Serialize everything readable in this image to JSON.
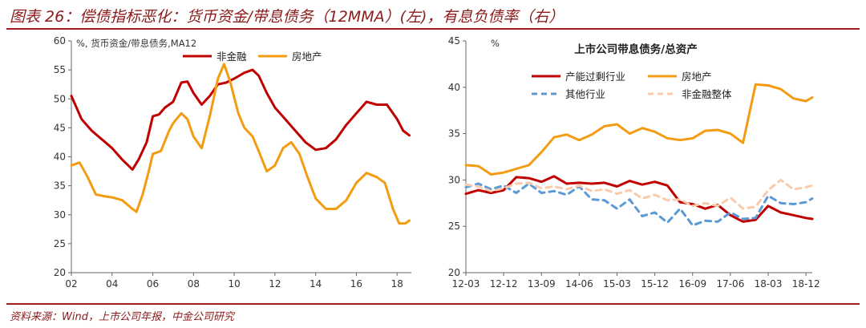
{
  "page": {
    "title": "图表 26：偿债指标恶化：货币资金/带息债务（12MMA）(左)，有息负债率（右）",
    "source": "资料来源：Wind，上市公司年报，中金公司研究"
  },
  "colors": {
    "title": "#8b1a1a",
    "rule": "#a31f1f",
    "dark_red": "#c00000",
    "orange": "#f39c12",
    "blue": "#5b9bd5",
    "peach": "#f8cbad"
  },
  "chart_data": [
    {
      "type": "line",
      "unit_label": "%, 货币资金/带息债务,MA12",
      "ylim": [
        20,
        60
      ],
      "yticks": [
        20,
        25,
        30,
        35,
        40,
        45,
        50,
        55,
        60
      ],
      "xlim": [
        2002,
        2018.7
      ],
      "xticks": [
        2002,
        2004,
        2006,
        2008,
        2010,
        2012,
        2014,
        2016,
        2018
      ],
      "xtick_labels": [
        "02",
        "04",
        "06",
        "08",
        "10",
        "12",
        "14",
        "16",
        "18"
      ],
      "legend": "top-center",
      "series": [
        {
          "name": "非金融",
          "color": "#c00000",
          "x": [
            2002.0,
            2002.5,
            2003.0,
            2003.5,
            2004.0,
            2004.5,
            2005.0,
            2005.3,
            2005.7,
            2006.0,
            2006.3,
            2006.6,
            2007.0,
            2007.4,
            2007.7,
            2008.0,
            2008.4,
            2008.8,
            2009.2,
            2009.6,
            2010.0,
            2010.5,
            2010.9,
            2011.2,
            2011.6,
            2012.0,
            2012.5,
            2013.0,
            2013.5,
            2014.0,
            2014.5,
            2015.0,
            2015.5,
            2016.0,
            2016.5,
            2017.0,
            2017.5,
            2018.0,
            2018.3,
            2018.6
          ],
          "y": [
            50.5,
            46.5,
            44.5,
            43.0,
            41.5,
            39.5,
            37.8,
            39.5,
            42.5,
            47.0,
            47.3,
            48.5,
            49.5,
            52.8,
            53.0,
            51.0,
            49.0,
            50.5,
            52.5,
            52.8,
            53.5,
            54.5,
            55.0,
            54.0,
            51.0,
            48.5,
            46.5,
            44.5,
            42.5,
            41.2,
            41.5,
            43.0,
            45.5,
            47.5,
            49.5,
            49.0,
            49.0,
            46.5,
            44.5,
            43.7
          ]
        },
        {
          "name": "房地产",
          "color": "#f39c12",
          "x": [
            2002.0,
            2002.4,
            2002.8,
            2003.2,
            2003.6,
            2004.0,
            2004.5,
            2005.0,
            2005.2,
            2005.5,
            2005.8,
            2006.0,
            2006.4,
            2006.8,
            2007.0,
            2007.4,
            2007.7,
            2008.0,
            2008.4,
            2008.8,
            2009.2,
            2009.5,
            2009.8,
            2010.2,
            2010.5,
            2010.9,
            2011.2,
            2011.6,
            2012.0,
            2012.4,
            2012.8,
            2013.2,
            2013.6,
            2014.0,
            2014.5,
            2015.0,
            2015.5,
            2016.0,
            2016.5,
            2017.0,
            2017.4,
            2017.8,
            2018.1,
            2018.4,
            2018.6
          ],
          "y": [
            38.5,
            39.0,
            36.5,
            33.5,
            33.2,
            33.0,
            32.5,
            31.0,
            30.5,
            33.5,
            37.5,
            40.5,
            41.0,
            44.5,
            45.8,
            47.5,
            46.5,
            43.5,
            41.5,
            47.0,
            53.5,
            56.0,
            53.0,
            47.5,
            45.0,
            43.5,
            41.0,
            37.5,
            38.5,
            41.5,
            42.5,
            40.5,
            36.5,
            32.8,
            31.0,
            31.0,
            32.5,
            35.5,
            37.2,
            36.5,
            35.5,
            31.0,
            28.5,
            28.5,
            29.0
          ]
        }
      ]
    },
    {
      "type": "line",
      "title": "上市公司带息债务/总资产",
      "unit_label": "%",
      "ylim": [
        20,
        45
      ],
      "yticks": [
        20,
        25,
        30,
        35,
        40,
        45
      ],
      "xlim": [
        0,
        27.5
      ],
      "xticks": [
        0,
        3,
        6,
        9,
        12,
        15,
        18,
        21,
        24,
        27
      ],
      "xtick_labels": [
        "12-03",
        "12-12",
        "13-09",
        "14-06",
        "15-03",
        "15-12",
        "16-09",
        "17-06",
        "18-03",
        "18-12"
      ],
      "legend": "top-left",
      "series": [
        {
          "name": "产能过剩行业",
          "color": "#c00000",
          "dash": false,
          "x": [
            0,
            1,
            2,
            3,
            4,
            5,
            6,
            7,
            8,
            9,
            10,
            11,
            12,
            13,
            14,
            15,
            16,
            17,
            18,
            19,
            20,
            21,
            22,
            23,
            24,
            25,
            26,
            27,
            27.5
          ],
          "y": [
            28.5,
            28.9,
            28.6,
            28.9,
            30.3,
            30.2,
            29.8,
            30.4,
            29.6,
            29.7,
            29.6,
            29.7,
            29.3,
            29.9,
            29.5,
            29.8,
            29.4,
            27.6,
            27.4,
            26.9,
            27.3,
            26.2,
            25.5,
            25.7,
            27.2,
            26.5,
            26.2,
            25.9,
            25.8
          ]
        },
        {
          "name": "房地产",
          "color": "#f39c12",
          "dash": false,
          "x": [
            0,
            1,
            2,
            3,
            4,
            5,
            6,
            7,
            8,
            9,
            10,
            11,
            12,
            13,
            14,
            15,
            16,
            17,
            18,
            19,
            20,
            21,
            22,
            23,
            24,
            25,
            26,
            27,
            27.5
          ],
          "y": [
            31.6,
            31.5,
            30.6,
            30.8,
            31.2,
            31.6,
            33.0,
            34.6,
            34.9,
            34.3,
            34.9,
            35.8,
            36.0,
            35.0,
            35.6,
            35.2,
            34.5,
            34.3,
            34.5,
            35.3,
            35.4,
            35.0,
            34.0,
            40.3,
            40.2,
            39.8,
            38.8,
            38.5,
            38.9
          ]
        },
        {
          "name": "其他行业",
          "color": "#5b9bd5",
          "dash": true,
          "x": [
            0,
            1,
            2,
            3,
            4,
            5,
            6,
            7,
            8,
            9,
            10,
            11,
            12,
            13,
            14,
            15,
            16,
            17,
            18,
            19,
            20,
            21,
            22,
            23,
            24,
            25,
            26,
            27,
            27.5
          ],
          "y": [
            29.2,
            29.6,
            29.0,
            29.4,
            28.6,
            29.6,
            28.6,
            28.8,
            28.4,
            29.3,
            27.9,
            27.8,
            26.9,
            27.9,
            26.1,
            26.5,
            25.4,
            26.9,
            25.1,
            25.6,
            25.5,
            26.5,
            25.8,
            25.9,
            28.3,
            27.5,
            27.4,
            27.6,
            28.0
          ]
        },
        {
          "name": "非金融整体",
          "color": "#f8cbad",
          "dash": true,
          "x": [
            0,
            1,
            2,
            3,
            4,
            5,
            6,
            7,
            8,
            9,
            10,
            11,
            12,
            13,
            14,
            15,
            16,
            17,
            18,
            19,
            20,
            21,
            22,
            23,
            24,
            25,
            26,
            27,
            27.5
          ],
          "y": [
            29.5,
            29.3,
            28.8,
            29.1,
            29.6,
            29.7,
            29.1,
            29.3,
            29.0,
            29.4,
            28.8,
            29.0,
            28.5,
            28.9,
            28.0,
            28.4,
            27.8,
            27.9,
            27.2,
            27.5,
            27.2,
            28.1,
            26.9,
            27.1,
            28.9,
            30.0,
            29.0,
            29.2,
            29.4
          ]
        }
      ]
    }
  ]
}
